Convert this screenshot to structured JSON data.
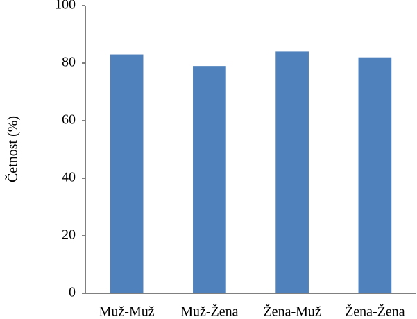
{
  "chart_data": {
    "type": "bar",
    "y_label": "Četnost (%)",
    "categories": [
      "Muž-Muž",
      "Muž-Žena",
      "Žena-Muž",
      "Žena-Žena"
    ],
    "values": [
      83,
      79,
      84,
      82
    ],
    "color": "#4f81bd",
    "ylim": [
      0,
      100
    ],
    "yticks": [
      0,
      20,
      40,
      60,
      80,
      100
    ],
    "grid": false
  }
}
